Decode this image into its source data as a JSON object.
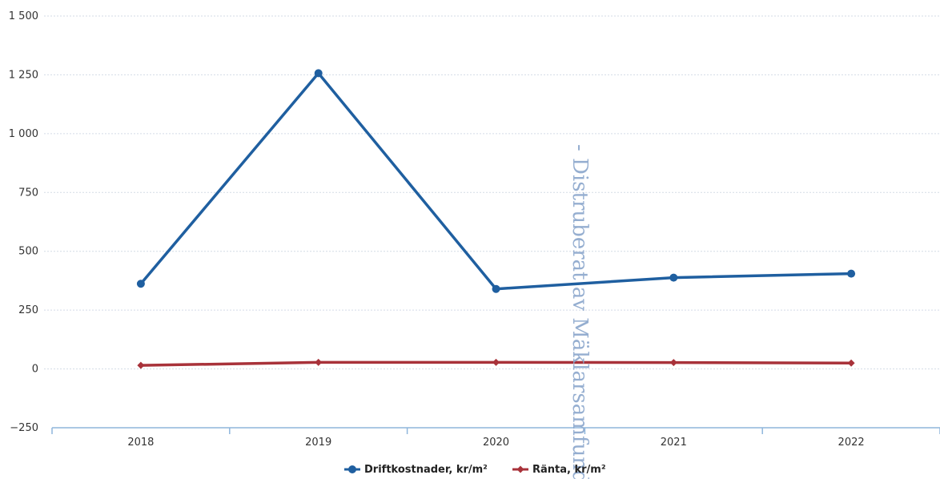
{
  "chart_data": {
    "type": "line",
    "categories": [
      "2018",
      "2019",
      "2020",
      "2021",
      "2022"
    ],
    "ylim": [
      -250,
      1500
    ],
    "yticks": [
      -250,
      0,
      250,
      500,
      750,
      1000,
      1250,
      1500
    ],
    "ytick_labels": [
      "−250",
      "0",
      "250",
      "500",
      "750",
      "1 000",
      "1 250",
      "1 500"
    ],
    "grid": true,
    "legend_position": "bottom-center",
    "series": [
      {
        "name": "Driftkostnader, kr/m²",
        "color": "#1f5fa0",
        "marker": "circle",
        "values": [
          362,
          1257,
          340,
          388,
          405
        ]
      },
      {
        "name": "Ränta, kr/m²",
        "color": "#a8323a",
        "marker": "diamond",
        "values": [
          15,
          28,
          28,
          27,
          25
        ]
      }
    ]
  },
  "watermark": "- Distruberat av Mäklarsamfund"
}
